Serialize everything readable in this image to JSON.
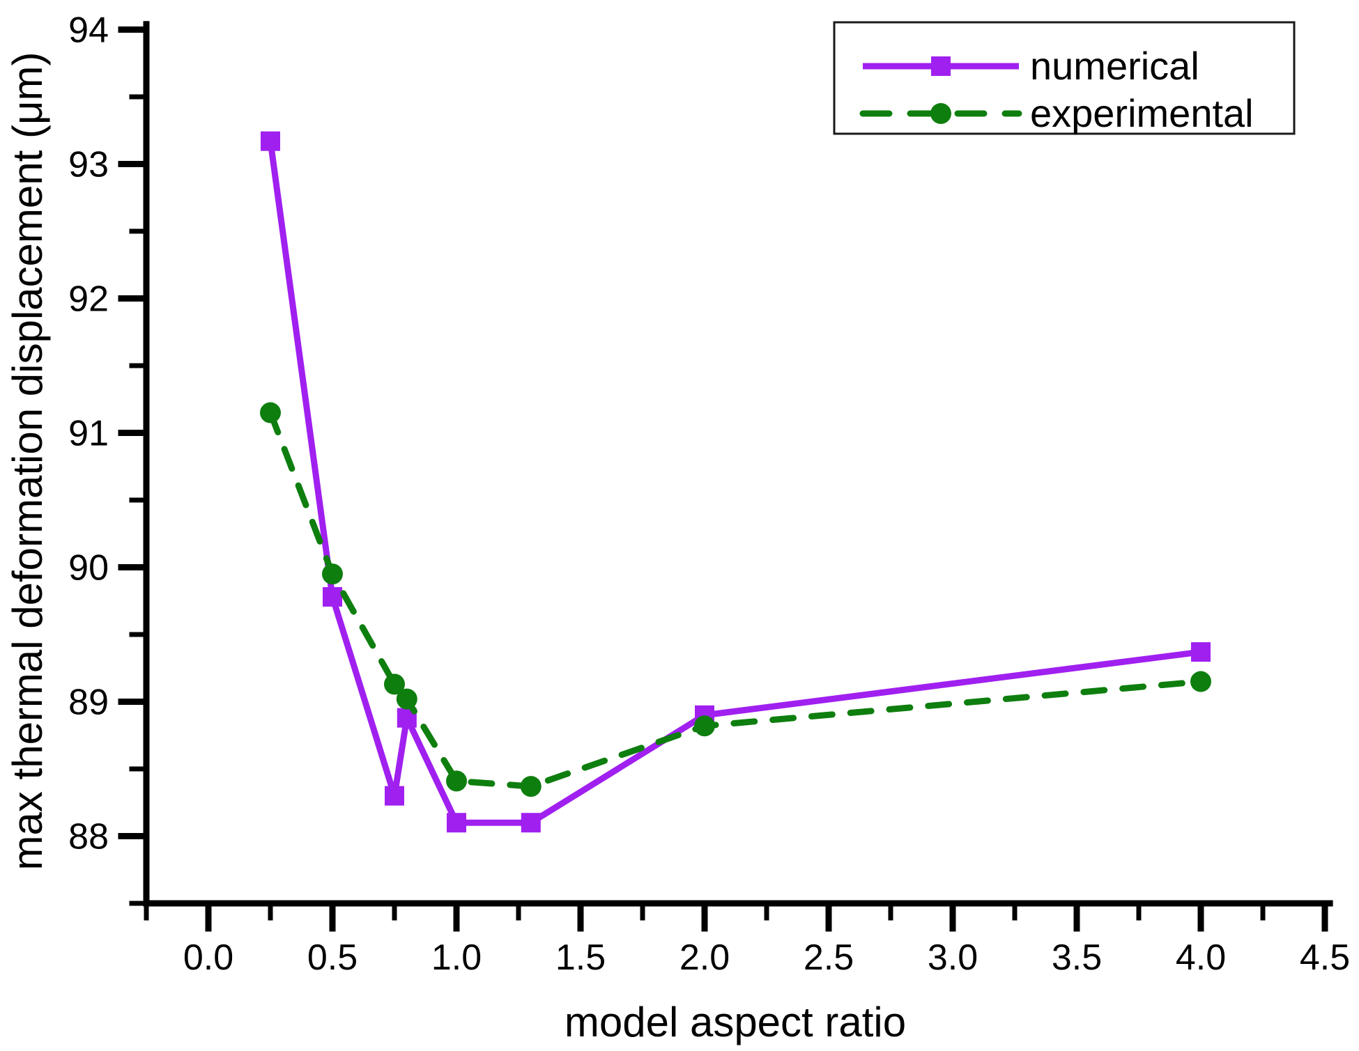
{
  "chart_data": {
    "type": "line",
    "title": "",
    "xlabel": "model aspect ratio",
    "ylabel": "max thermal deformation displacement (μm)",
    "xlim": [
      -0.25,
      4.52
    ],
    "ylim": [
      87.5,
      94.04
    ],
    "grid": false,
    "legend_position": "top-right",
    "x_ticks_major": [
      0.0,
      0.5,
      1.0,
      1.5,
      2.0,
      2.5,
      3.0,
      3.5,
      4.0,
      4.5
    ],
    "x_tick_labels": [
      "0.0",
      "0.5",
      "1.0",
      "1.5",
      "2.0",
      "2.5",
      "3.0",
      "3.5",
      "4.0",
      "4.5"
    ],
    "x_ticks_minor": [
      -0.25,
      0.25,
      0.75,
      1.25,
      1.75,
      2.25,
      2.75,
      3.25,
      3.75,
      4.25
    ],
    "y_ticks_major": [
      88,
      89,
      90,
      91,
      92,
      93,
      94
    ],
    "y_tick_labels": [
      "88",
      "89",
      "90",
      "91",
      "92",
      "93",
      "94"
    ],
    "y_ticks_minor": [
      87.5,
      88.5,
      89.5,
      90.5,
      91.5,
      92.5,
      93.5
    ],
    "series": [
      {
        "name": "numerical",
        "color": "#A020F0",
        "line_style": "solid",
        "marker": "square",
        "x": [
          0.25,
          0.5,
          0.75,
          0.8,
          1.0,
          1.3,
          2.0,
          4.0
        ],
        "y": [
          93.17,
          89.78,
          88.3,
          88.88,
          88.1,
          88.1,
          88.9,
          89.37
        ]
      },
      {
        "name": "experimental",
        "color": "#0E7E0E",
        "line_style": "dashed",
        "marker": "circle",
        "x": [
          0.25,
          0.5,
          0.75,
          0.8,
          1.0,
          1.3,
          2.0,
          4.0
        ],
        "y": [
          91.15,
          89.95,
          89.13,
          89.02,
          88.41,
          88.37,
          88.82,
          89.15
        ]
      }
    ],
    "axis_color": "#000000",
    "legend_border_color": "#1a1a1a"
  }
}
